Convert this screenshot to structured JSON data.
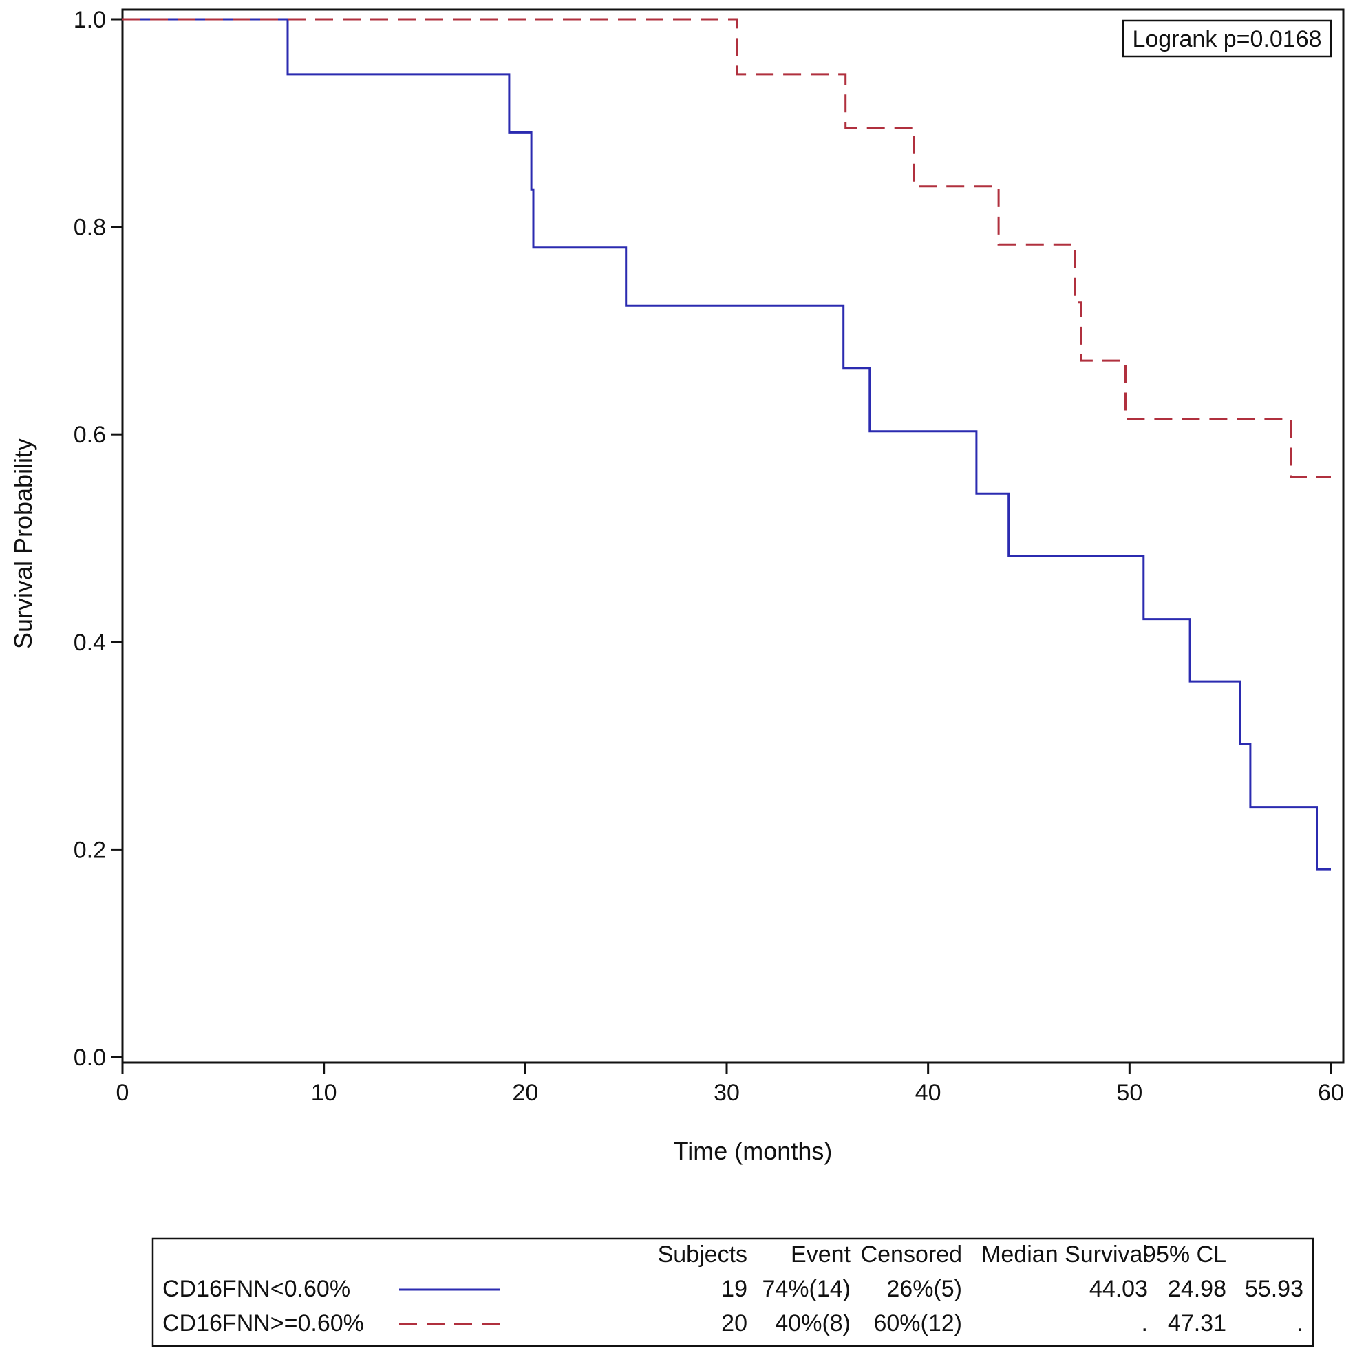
{
  "chart_data": {
    "type": "line",
    "subtype": "kaplan-meier",
    "title": "",
    "xlabel": "Time (months)",
    "ylabel": "Survival Probability",
    "xlim": [
      0,
      60
    ],
    "ylim": [
      0,
      1
    ],
    "xticks": [
      0,
      10,
      20,
      30,
      40,
      50,
      60
    ],
    "yticks": [
      0.0,
      0.2,
      0.4,
      0.6,
      0.8,
      1.0
    ],
    "ytick_labels": [
      "0.0",
      "0.2",
      "0.4",
      "0.6",
      "0.8",
      "1.0"
    ],
    "grid": false,
    "annotation": "Logrank p=0.0168",
    "series": [
      {
        "name": "CD16FNN<0.60%",
        "color": "#2b2bb0",
        "dash": "solid",
        "x": [
          0,
          8.2,
          8.2,
          19.2,
          19.2,
          20.3,
          20.3,
          20.4,
          20.4,
          25.0,
          25.0,
          35.8,
          35.8,
          37.1,
          37.1,
          42.4,
          42.4,
          44.0,
          44.0,
          50.7,
          50.7,
          53.0,
          53.0,
          55.5,
          55.5,
          56.0,
          56.0,
          59.3,
          59.3,
          60.0
        ],
        "y": [
          1.0,
          1.0,
          0.947,
          0.947,
          0.891,
          0.891,
          0.836,
          0.836,
          0.78,
          0.78,
          0.724,
          0.724,
          0.664,
          0.664,
          0.603,
          0.603,
          0.543,
          0.543,
          0.483,
          0.483,
          0.422,
          0.422,
          0.362,
          0.362,
          0.302,
          0.302,
          0.241,
          0.241,
          0.181,
          0.181
        ]
      },
      {
        "name": "CD16FNN>=0.60%",
        "color": "#b0303e",
        "dash": "dashed",
        "x": [
          0,
          30.5,
          30.5,
          35.9,
          35.9,
          39.3,
          39.3,
          43.5,
          43.5,
          47.3,
          47.3,
          47.6,
          47.6,
          49.8,
          49.8,
          58.0,
          58.0,
          60.0
        ],
        "y": [
          1.0,
          1.0,
          0.947,
          0.947,
          0.895,
          0.895,
          0.839,
          0.839,
          0.783,
          0.783,
          0.727,
          0.727,
          0.671,
          0.671,
          0.615,
          0.615,
          0.559,
          0.559
        ]
      }
    ],
    "legend_table": {
      "headers": [
        "Subjects",
        "Event",
        "Censored",
        "Median Survival",
        "95% CL",
        ""
      ],
      "rows": [
        {
          "label": "CD16FNN<0.60%",
          "subjects": "19",
          "event": "74%(14)",
          "censored": "26%(5)",
          "median": "44.03",
          "cl_low": "24.98",
          "cl_high": "55.93"
        },
        {
          "label": "CD16FNN>=0.60%",
          "subjects": "20",
          "event": "40%(8)",
          "censored": "60%(12)",
          "median": ".",
          "cl_low": "47.31",
          "cl_high": "."
        }
      ]
    }
  }
}
